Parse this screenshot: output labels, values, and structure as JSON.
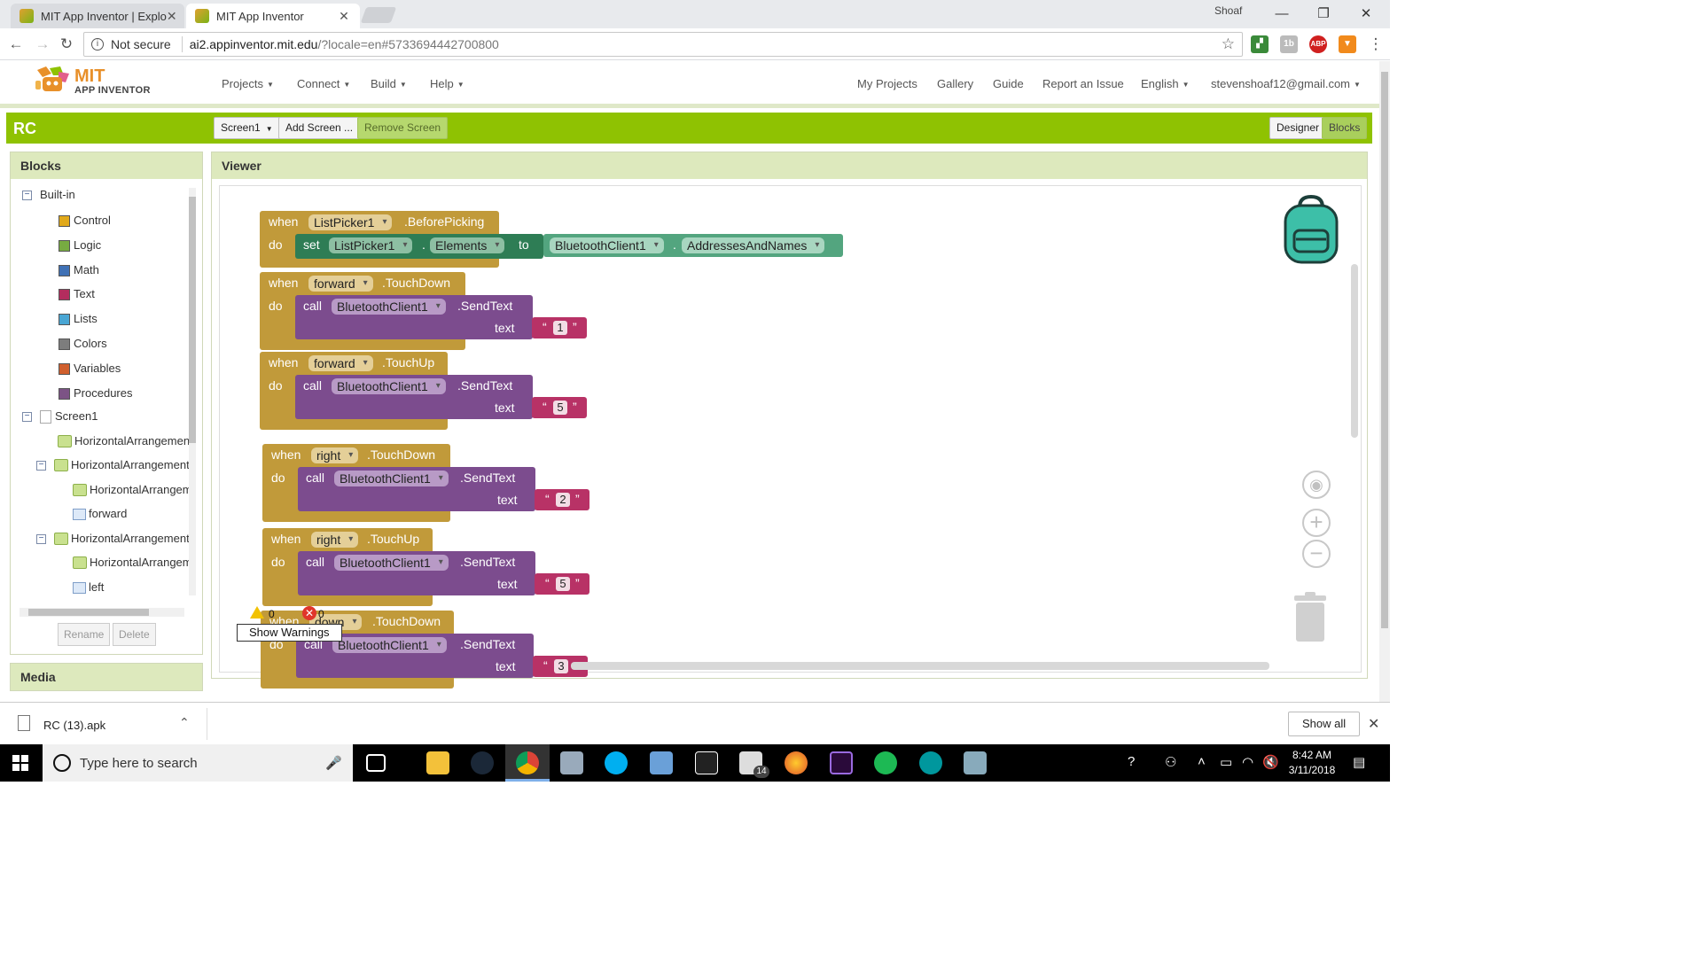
{
  "browser": {
    "tabs": [
      {
        "title": "MIT App Inventor | Explo",
        "active": false
      },
      {
        "title": "MIT App Inventor",
        "active": true
      }
    ],
    "profile_name": "Shoaf",
    "omnibox": {
      "security": "Not secure",
      "host": "ai2.appinventor.mit.edu",
      "path": "/?locale=en#5733694442700800"
    },
    "extensions": [
      "ABP"
    ]
  },
  "header": {
    "logo_line1": "MIT",
    "logo_line2": "APP INVENTOR",
    "menu": [
      "Projects",
      "Connect",
      "Build",
      "Help"
    ],
    "right_links": [
      "My Projects",
      "Gallery",
      "Guide",
      "Report an Issue"
    ],
    "language": "English",
    "account": "stevenshoaf12@gmail.com"
  },
  "toolbar": {
    "project_name": "RC",
    "screen_select": "Screen1",
    "add_screen": "Add Screen ...",
    "remove_screen": "Remove Screen",
    "designer": "Designer",
    "blocks": "Blocks"
  },
  "blocks_panel": {
    "title": "Blocks",
    "builtin": "Built-in",
    "categories": [
      {
        "label": "Control",
        "color": "#e1a91a"
      },
      {
        "label": "Logic",
        "color": "#77ab41"
      },
      {
        "label": "Math",
        "color": "#3f71b5"
      },
      {
        "label": "Text",
        "color": "#b32d5e"
      },
      {
        "label": "Lists",
        "color": "#49a6d4"
      },
      {
        "label": "Colors",
        "color": "#7d7d7d"
      },
      {
        "label": "Variables",
        "color": "#d05f2d"
      },
      {
        "label": "Procedures",
        "color": "#7c5385"
      }
    ],
    "screen": "Screen1",
    "components": [
      "HorizontalArrangement",
      "HorizontalArrangement",
      "HorizontalArrangem",
      "forward",
      "HorizontalArrangement",
      "HorizontalArrangem",
      "left"
    ],
    "rename": "Rename",
    "delete": "Delete"
  },
  "media_panel": {
    "title": "Media"
  },
  "viewer": {
    "title": "Viewer",
    "kw": {
      "when": "when",
      "do": "do",
      "set": "set",
      "to": "to",
      "call": "call",
      "text": "text",
      "dot": "."
    },
    "block1": {
      "component": "ListPicker1",
      "event": ".BeforePicking",
      "set_comp": "ListPicker1",
      "set_prop": "Elements",
      "bt": "BluetoothClient1",
      "bt_prop": "AddressesAndNames"
    },
    "events": [
      {
        "component": "forward",
        "event": ".TouchDown",
        "target": "BluetoothClient1",
        "method": ".SendText",
        "value": "1"
      },
      {
        "component": "forward",
        "event": ".TouchUp",
        "target": "BluetoothClient1",
        "method": ".SendText",
        "value": "5"
      },
      {
        "component": "right",
        "event": ".TouchDown",
        "target": "BluetoothClient1",
        "method": ".SendText",
        "value": "2"
      },
      {
        "component": "right",
        "event": ".TouchUp",
        "target": "BluetoothClient1",
        "method": ".SendText",
        "value": "5"
      },
      {
        "component": "down",
        "event": ".TouchDown",
        "target": "BluetoothClient1",
        "method": ".SendText",
        "value": "3"
      }
    ],
    "warnings_count": "0",
    "errors_count": "0",
    "show_warnings": "Show Warnings"
  },
  "downloads": {
    "file": "RC (13).apk",
    "show_all": "Show all"
  },
  "taskbar": {
    "search_placeholder": "Type here to search",
    "mail_badge": "14",
    "time": "8:42 AM",
    "date": "3/11/2018"
  }
}
